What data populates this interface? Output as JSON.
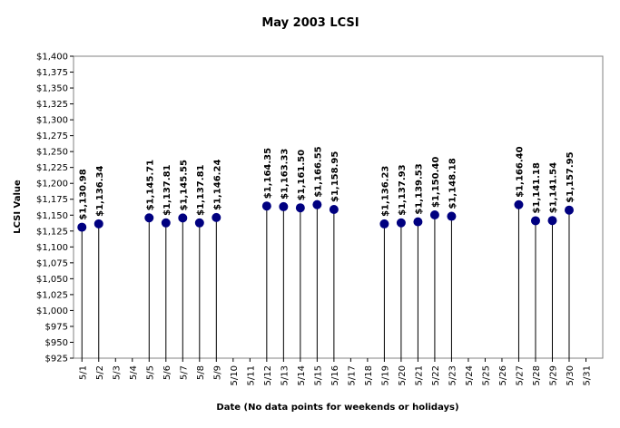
{
  "chart_data": {
    "type": "scatter",
    "title": "May 2003 LCSI",
    "xlabel": "Date (No data points for weekends or holidays)",
    "ylabel": "LCSI Value",
    "ylim": [
      925,
      1400
    ],
    "ytick_step": 25,
    "ytick_labels": [
      "$925",
      "$950",
      "$975",
      "$1,000",
      "$1,025",
      "$1,050",
      "$1,075",
      "$1,100",
      "$1,125",
      "$1,150",
      "$1,175",
      "$1,200",
      "$1,225",
      "$1,250",
      "$1,275",
      "$1,300",
      "$1,325",
      "$1,350",
      "$1,375",
      "$1,400"
    ],
    "categories": [
      "5/1",
      "5/2",
      "5/3",
      "5/4",
      "5/5",
      "5/6",
      "5/7",
      "5/8",
      "5/9",
      "5/10",
      "5/11",
      "5/12",
      "5/13",
      "5/14",
      "5/15",
      "5/16",
      "5/17",
      "5/18",
      "5/19",
      "5/20",
      "5/21",
      "5/22",
      "5/23",
      "5/24",
      "5/25",
      "5/26",
      "5/27",
      "5/28",
      "5/29",
      "5/30",
      "5/31"
    ],
    "values": [
      1130.98,
      1136.34,
      null,
      null,
      1145.71,
      1137.81,
      1145.55,
      1137.81,
      1146.24,
      null,
      null,
      1164.35,
      1163.33,
      1161.5,
      1166.55,
      1158.95,
      null,
      null,
      1136.23,
      1137.93,
      1139.53,
      1150.4,
      1148.18,
      null,
      null,
      null,
      1166.4,
      1141.18,
      1141.54,
      1157.95,
      null
    ],
    "data_labels": [
      "$1,130.98",
      "$1,136.34",
      null,
      null,
      "$1,145.71",
      "$1,137.81",
      "$1,145.55",
      "$1,137.81",
      "$1,146.24",
      null,
      null,
      "$1,164.35",
      "$1,163.33",
      "$1,161.50",
      "$1,166.55",
      "$1,158.95",
      null,
      null,
      "$1,136.23",
      "$1,137.93",
      "$1,139.53",
      "$1,150.40",
      "$1,148.18",
      null,
      null,
      null,
      "$1,166.40",
      "$1,141.18",
      "$1,141.54",
      "$1,157.95",
      null
    ],
    "marker_color": "#000080",
    "drop_line_color": "#000000",
    "grid": false,
    "legend": "none"
  }
}
